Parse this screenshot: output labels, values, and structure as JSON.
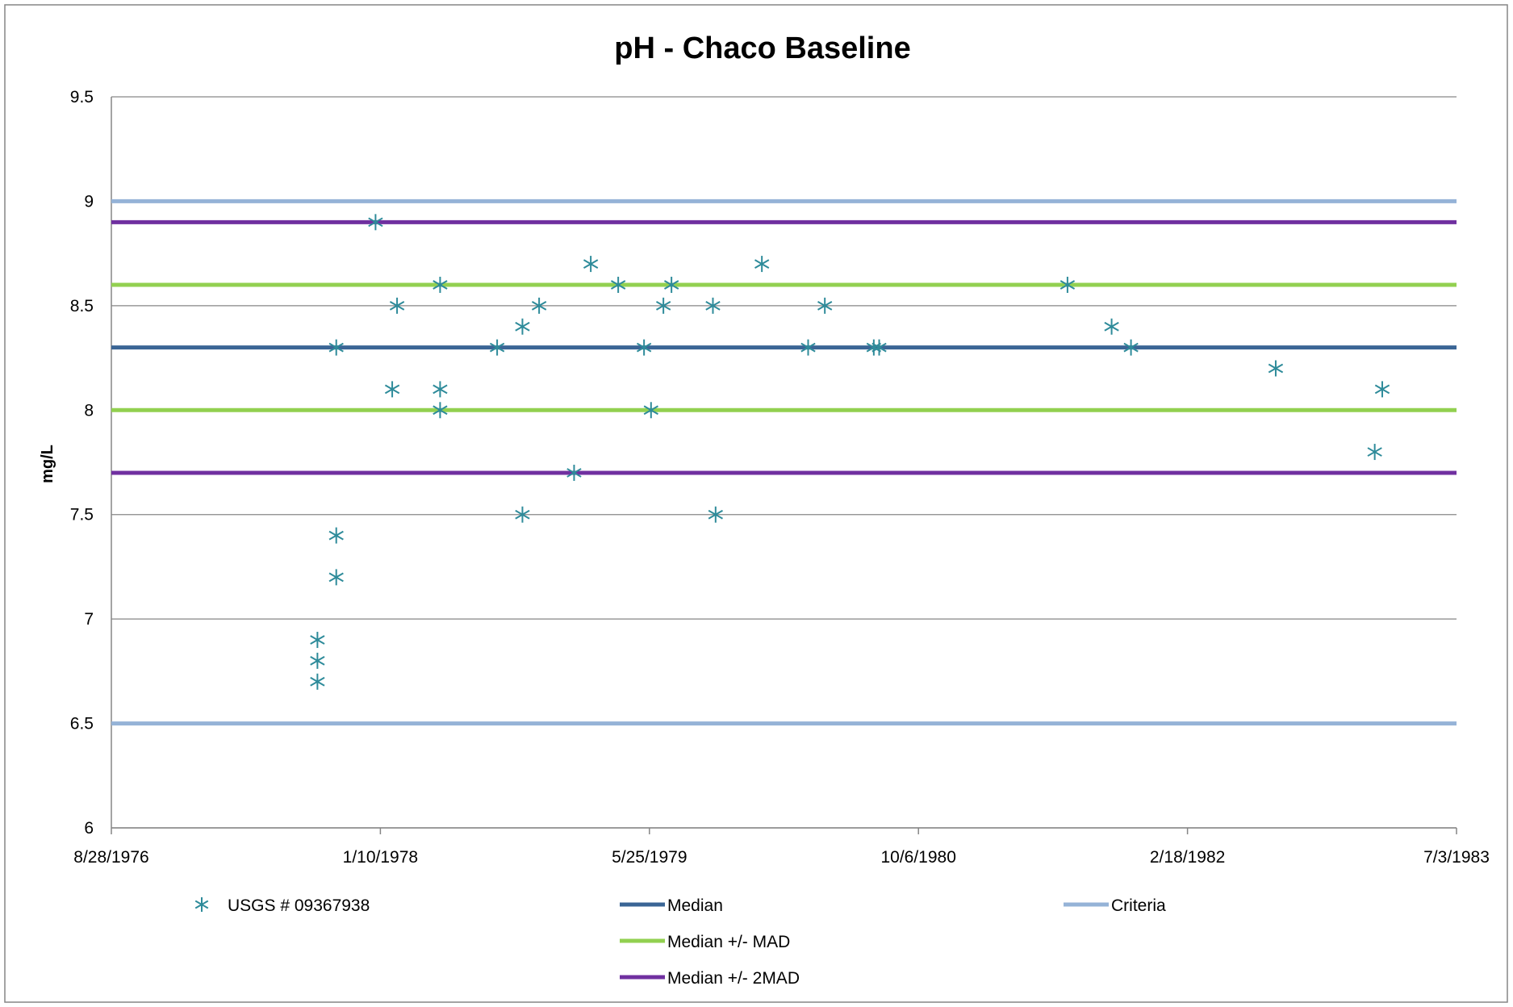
{
  "chart_data": {
    "type": "scatter",
    "title": "pH - Chaco Baseline",
    "xlabel": "",
    "ylabel": "mg/L",
    "xlim": [
      "8/28/1976",
      "7/3/1983"
    ],
    "ylim": [
      6,
      9.5
    ],
    "x_tick_labels": [
      "8/28/1976",
      "1/10/1978",
      "5/25/1979",
      "10/6/1980",
      "2/18/1982",
      "7/3/1983"
    ],
    "y_tick_labels": [
      "6",
      "6.5",
      "7",
      "7.5",
      "8",
      "8.5",
      "9",
      "9.5"
    ],
    "y_ticks": [
      6,
      6.5,
      7,
      7.5,
      8,
      8.5,
      9,
      9.5
    ],
    "grid": "horizontal",
    "legend_position": "bottom",
    "series": [
      {
        "name": "USGS # 09367938",
        "kind": "scatter",
        "marker": "asterisk",
        "color": "#2E8B9A",
        "points": [
          {
            "x": "9/15/1977",
            "y": 6.9
          },
          {
            "x": "9/15/1977",
            "y": 6.8
          },
          {
            "x": "9/15/1977",
            "y": 6.7
          },
          {
            "x": "10/20/1977",
            "y": 8.3
          },
          {
            "x": "10/20/1977",
            "y": 7.4
          },
          {
            "x": "10/20/1977",
            "y": 7.2
          },
          {
            "x": "1/1/1978",
            "y": 8.9
          },
          {
            "x": "2/1/1978",
            "y": 8.1
          },
          {
            "x": "2/10/1978",
            "y": 8.5
          },
          {
            "x": "5/1/1978",
            "y": 8.6
          },
          {
            "x": "5/1/1978",
            "y": 8.1
          },
          {
            "x": "5/1/1978",
            "y": 8.0
          },
          {
            "x": "8/15/1978",
            "y": 8.3
          },
          {
            "x": "10/1/1978",
            "y": 8.4
          },
          {
            "x": "10/1/1978",
            "y": 7.5
          },
          {
            "x": "11/1/1978",
            "y": 8.5
          },
          {
            "x": "1/5/1979",
            "y": 7.7
          },
          {
            "x": "2/5/1979",
            "y": 8.7
          },
          {
            "x": "3/28/1979",
            "y": 8.6
          },
          {
            "x": "5/15/1979",
            "y": 8.3
          },
          {
            "x": "5/28/1979",
            "y": 8.0
          },
          {
            "x": "6/20/1979",
            "y": 8.5
          },
          {
            "x": "7/5/1979",
            "y": 8.6
          },
          {
            "x": "9/20/1979",
            "y": 8.5
          },
          {
            "x": "9/25/1979",
            "y": 7.5
          },
          {
            "x": "12/20/1979",
            "y": 8.7
          },
          {
            "x": "3/15/1980",
            "y": 8.3
          },
          {
            "x": "4/15/1980",
            "y": 8.5
          },
          {
            "x": "7/15/1980",
            "y": 8.3
          },
          {
            "x": "7/25/1980",
            "y": 8.3
          },
          {
            "x": "7/10/1981",
            "y": 8.6
          },
          {
            "x": "9/30/1981",
            "y": 8.4
          },
          {
            "x": "11/5/1981",
            "y": 8.3
          },
          {
            "x": "8/1/1982",
            "y": 8.2
          },
          {
            "x": "2/1/1983",
            "y": 7.8
          },
          {
            "x": "2/15/1983",
            "y": 8.1
          }
        ]
      },
      {
        "name": "Median",
        "kind": "hline",
        "color": "#3A6595",
        "values": [
          8.3
        ]
      },
      {
        "name": "Median +/- MAD",
        "kind": "hline",
        "color": "#92D050",
        "values": [
          8.6,
          8.0
        ]
      },
      {
        "name": "Median +/- 2MAD",
        "kind": "hline",
        "color": "#7030A0",
        "values": [
          8.9,
          7.7
        ]
      },
      {
        "name": "Criteria",
        "kind": "hline",
        "color": "#95B3D7",
        "values": [
          9.0,
          6.5
        ]
      }
    ]
  }
}
